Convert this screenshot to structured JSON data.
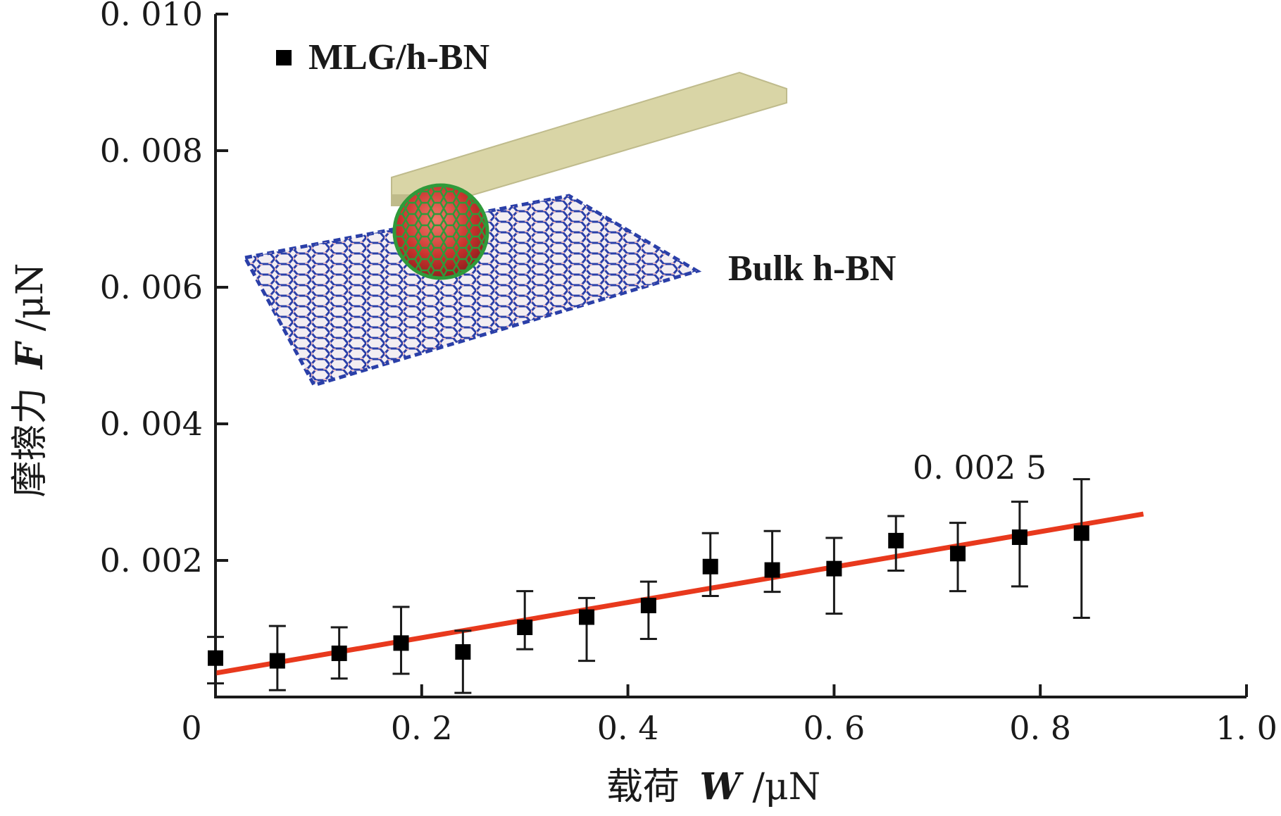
{
  "chart_data": {
    "type": "scatter",
    "xlabel_text": "载荷",
    "xlabel_var": "W",
    "xlabel_unit": "/μN",
    "ylabel_text": "摩擦力",
    "ylabel_var": "F",
    "ylabel_unit": "/μN",
    "xlim": [
      0,
      1.0
    ],
    "ylim": [
      0,
      0.01
    ],
    "x_ticks": [
      "0",
      "0. 2",
      "0. 4",
      "0. 6",
      "0. 8",
      "1. 0"
    ],
    "x_tick_values": [
      0,
      0.2,
      0.4,
      0.6,
      0.8,
      1.0
    ],
    "y_ticks": [
      "0. 002",
      "0. 004",
      "0. 006",
      "0. 008",
      "0. 010"
    ],
    "y_tick_values": [
      0.002,
      0.004,
      0.006,
      0.008,
      0.01
    ],
    "legend": {
      "label": "MLG/h-BN",
      "placement": "top-left"
    },
    "inset_label": "Bulk h-BN",
    "fit_label": "0. 002 5",
    "fit_line": {
      "slope": 0.0025,
      "x": [
        0,
        0.9
      ],
      "y": [
        0.00035,
        0.00268
      ],
      "color": "#e8391d"
    },
    "series": [
      {
        "name": "MLG/h-BN",
        "color": "#000000",
        "points": [
          {
            "x": 0.0,
            "y": 0.00057,
            "yerr_low": 0.0002,
            "yerr_high": 0.00088
          },
          {
            "x": 0.06,
            "y": 0.00053,
            "yerr_low": 0.0001,
            "yerr_high": 0.00104
          },
          {
            "x": 0.12,
            "y": 0.00064,
            "yerr_low": 0.00027,
            "yerr_high": 0.00102
          },
          {
            "x": 0.18,
            "y": 0.00079,
            "yerr_low": 0.00034,
            "yerr_high": 0.00132
          },
          {
            "x": 0.24,
            "y": 0.00066,
            "yerr_low": 6e-05,
            "yerr_high": 0.00097
          },
          {
            "x": 0.3,
            "y": 0.00102,
            "yerr_low": 0.0007,
            "yerr_high": 0.00155
          },
          {
            "x": 0.36,
            "y": 0.00117,
            "yerr_low": 0.00053,
            "yerr_high": 0.00145
          },
          {
            "x": 0.42,
            "y": 0.00134,
            "yerr_low": 0.00085,
            "yerr_high": 0.00169
          },
          {
            "x": 0.48,
            "y": 0.00191,
            "yerr_low": 0.00148,
            "yerr_high": 0.0024
          },
          {
            "x": 0.54,
            "y": 0.00186,
            "yerr_low": 0.00154,
            "yerr_high": 0.00243
          },
          {
            "x": 0.6,
            "y": 0.00188,
            "yerr_low": 0.00122,
            "yerr_high": 0.00233
          },
          {
            "x": 0.66,
            "y": 0.00229,
            "yerr_low": 0.00185,
            "yerr_high": 0.00265
          },
          {
            "x": 0.72,
            "y": 0.0021,
            "yerr_low": 0.00155,
            "yerr_high": 0.00255
          },
          {
            "x": 0.78,
            "y": 0.00234,
            "yerr_low": 0.00162,
            "yerr_high": 0.00286
          },
          {
            "x": 0.84,
            "y": 0.0024,
            "yerr_low": 0.00116,
            "yerr_high": 0.00319
          }
        ]
      }
    ],
    "grid": false
  }
}
